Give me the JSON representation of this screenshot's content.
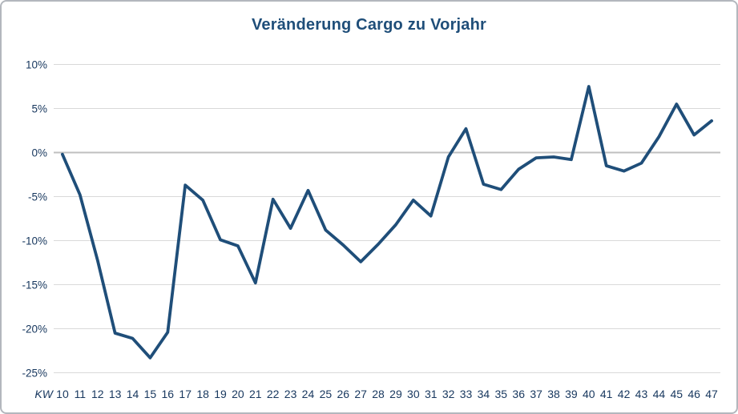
{
  "chart": {
    "title": "Veränderung Cargo zu Vorjahr"
  },
  "chart_data": {
    "type": "line",
    "title": "Veränderung Cargo zu Vorjahr",
    "x_axis_name": "KW",
    "x": [
      10,
      11,
      12,
      13,
      14,
      15,
      16,
      17,
      18,
      19,
      20,
      21,
      22,
      23,
      24,
      25,
      26,
      27,
      28,
      29,
      30,
      31,
      32,
      33,
      34,
      35,
      36,
      37,
      38,
      39,
      40,
      41,
      42,
      43,
      44,
      45,
      46,
      47
    ],
    "values": [
      -0.2,
      -4.8,
      -12.2,
      -20.5,
      -21.1,
      -23.3,
      -20.4,
      -3.7,
      -5.4,
      -9.9,
      -10.6,
      -14.8,
      -5.3,
      -8.6,
      -4.3,
      -8.8,
      -10.5,
      -12.4,
      -10.4,
      -8.2,
      -5.4,
      -7.2,
      -0.5,
      2.7,
      -3.6,
      -4.2,
      -1.9,
      -0.6,
      -0.5,
      -0.8,
      7.5,
      -1.5,
      -2.1,
      -1.2,
      1.8,
      5.5,
      2.0,
      3.6
    ],
    "series_name": "Veränderung Cargo zu Vorjahr",
    "y_ticks": [
      10,
      5,
      0,
      -5,
      -10,
      -15,
      -20,
      -25
    ],
    "y_tick_labels": [
      "10%",
      "5%",
      "0%",
      "-5%",
      "-10%",
      "-15%",
      "-20%",
      "-25%"
    ],
    "ylim": [
      -25,
      10
    ],
    "grid": true,
    "legend": "none",
    "colors": {
      "line": "#1F4E79",
      "title": "#1F4E79",
      "labels": "#17375E",
      "gridline": "#D9D9D9",
      "zero_gridline": "#BFBFBF"
    }
  }
}
